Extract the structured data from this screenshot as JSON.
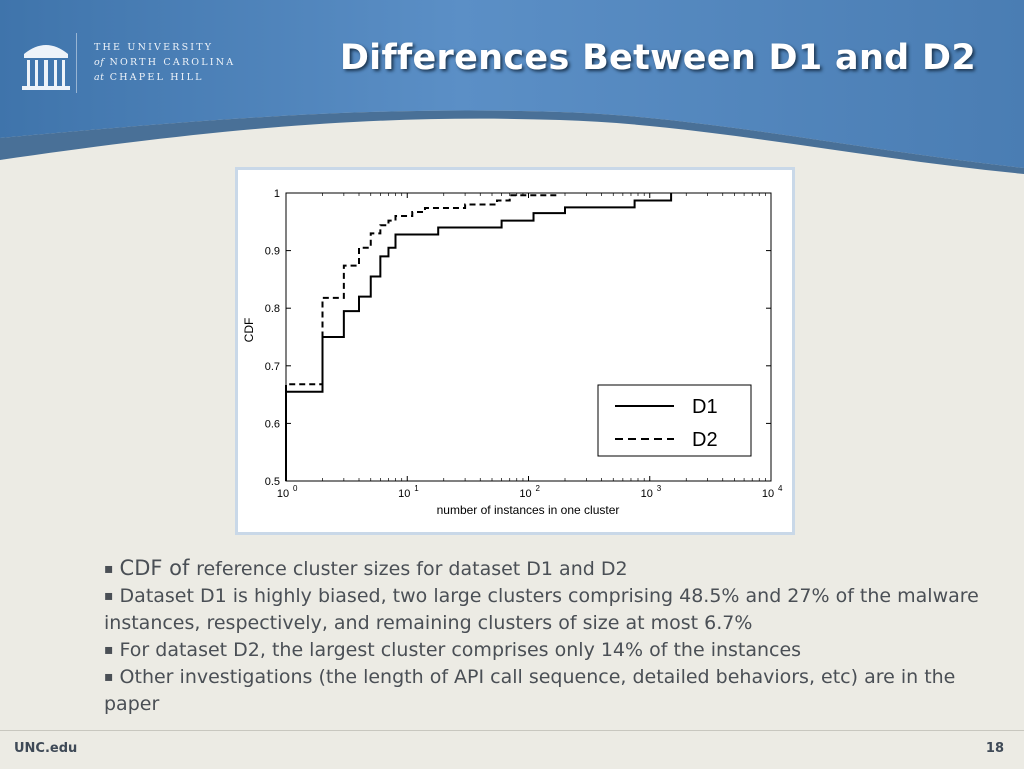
{
  "header": {
    "logo_lines": [
      "THE UNIVERSITY",
      "of",
      "NORTH CAROLINA",
      "at",
      "CHAPEL HILL"
    ],
    "title": "Differences Between D1 and D2"
  },
  "chart_data": {
    "type": "line",
    "x_scale": "log",
    "xlim": [
      1,
      10000
    ],
    "ylim": [
      0.5,
      1.0
    ],
    "xlabel": "number of instances in one cluster",
    "ylabel": "CDF",
    "x_ticks": [
      1,
      10,
      100,
      1000,
      10000
    ],
    "x_tick_labels": [
      {
        "base": "10",
        "exp": "0"
      },
      {
        "base": "10",
        "exp": "1"
      },
      {
        "base": "10",
        "exp": "2"
      },
      {
        "base": "10",
        "exp": "3"
      },
      {
        "base": "10",
        "exp": "4"
      }
    ],
    "y_ticks": [
      0.5,
      0.6,
      0.7,
      0.8,
      0.9,
      1.0
    ],
    "y_tick_labels": [
      "0.5",
      "0.6",
      "0.7",
      "0.8",
      "0.9",
      "1"
    ],
    "grid": false,
    "legend_position": "bottom-right",
    "series": [
      {
        "name": "D1",
        "style": "solid",
        "color": "#000000",
        "points": [
          [
            1,
            0.5
          ],
          [
            1,
            0.655
          ],
          [
            2,
            0.655
          ],
          [
            2,
            0.75
          ],
          [
            3,
            0.75
          ],
          [
            3,
            0.795
          ],
          [
            4,
            0.795
          ],
          [
            4,
            0.82
          ],
          [
            5,
            0.82
          ],
          [
            5,
            0.855
          ],
          [
            6,
            0.855
          ],
          [
            6,
            0.89
          ],
          [
            7,
            0.89
          ],
          [
            7,
            0.905
          ],
          [
            8,
            0.905
          ],
          [
            8,
            0.928
          ],
          [
            18,
            0.928
          ],
          [
            18,
            0.94
          ],
          [
            60,
            0.94
          ],
          [
            60,
            0.952
          ],
          [
            110,
            0.952
          ],
          [
            110,
            0.965
          ],
          [
            200,
            0.965
          ],
          [
            200,
            0.975
          ],
          [
            750,
            0.975
          ],
          [
            750,
            0.987
          ],
          [
            1500,
            0.987
          ],
          [
            1500,
            1.0
          ]
        ]
      },
      {
        "name": "D2",
        "style": "dashed",
        "color": "#000000",
        "points": [
          [
            1,
            0.5
          ],
          [
            1,
            0.668
          ],
          [
            2,
            0.668
          ],
          [
            2,
            0.818
          ],
          [
            3,
            0.818
          ],
          [
            3,
            0.874
          ],
          [
            4,
            0.874
          ],
          [
            4,
            0.905
          ],
          [
            5,
            0.905
          ],
          [
            5,
            0.93
          ],
          [
            6,
            0.93
          ],
          [
            6,
            0.944
          ],
          [
            7,
            0.944
          ],
          [
            7,
            0.952
          ],
          [
            8,
            0.952
          ],
          [
            8,
            0.96
          ],
          [
            11,
            0.96
          ],
          [
            11,
            0.967
          ],
          [
            14,
            0.967
          ],
          [
            14,
            0.974
          ],
          [
            30,
            0.974
          ],
          [
            30,
            0.98
          ],
          [
            55,
            0.98
          ],
          [
            55,
            0.987
          ],
          [
            70,
            0.987
          ],
          [
            70,
            0.996
          ],
          [
            180,
            0.996
          ]
        ]
      }
    ]
  },
  "bullets": {
    "item1_lead": "CDF of ",
    "item1_rest": "reference cluster sizes for dataset D1 and D2",
    "item2": "Dataset D1 is highly biased, two large clusters comprising 48.5% and 27% of the malware instances, respectively, and remaining clusters of size at most 6.7%",
    "item3": "For dataset D2, the largest cluster comprises only 14% of the instances",
    "item4": "Other investigations (the length of API call sequence, detailed behaviors, etc) are in the paper",
    "marker": "▪"
  },
  "footer": {
    "left": "UNC.edu",
    "page_number": "18"
  },
  "colors": {
    "header_blue": "#4a7fb5",
    "background": "#ecebe4",
    "text": "#4a4f55"
  }
}
